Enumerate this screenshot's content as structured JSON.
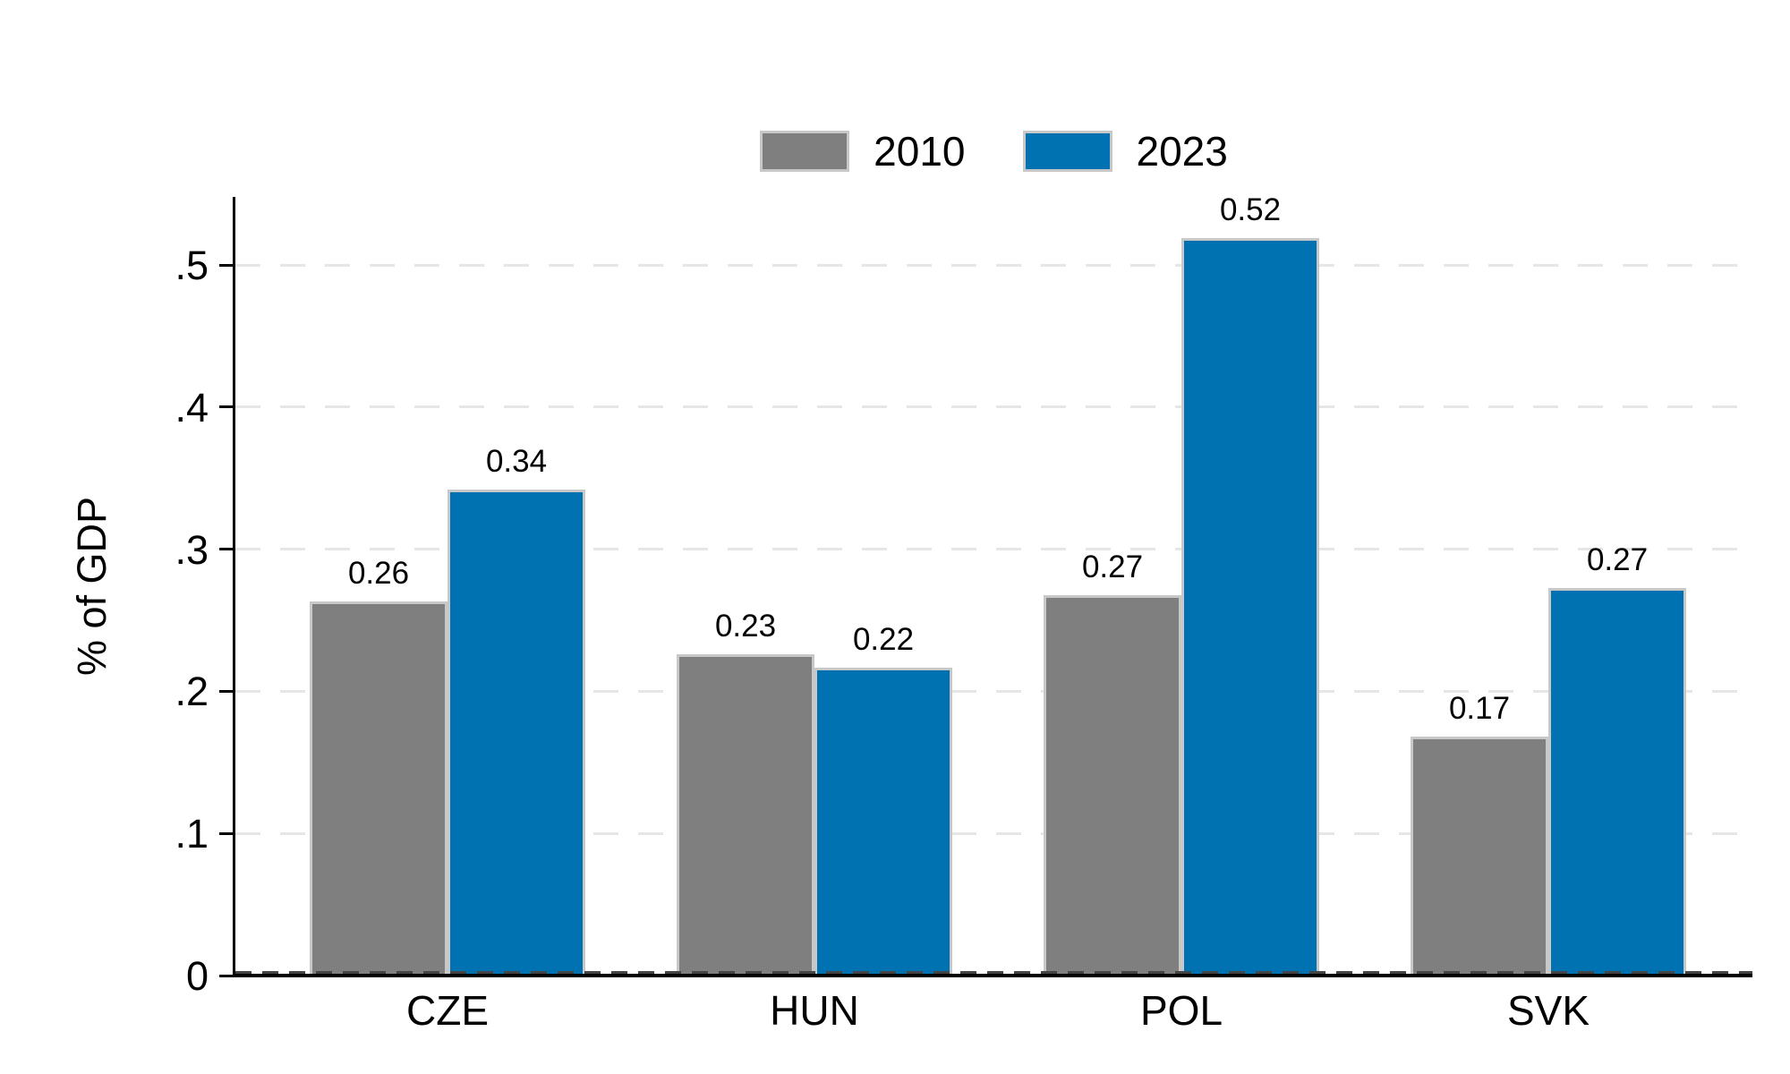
{
  "chart_data": {
    "type": "bar",
    "title": "",
    "xlabel": "",
    "ylabel": "% of GDP",
    "categories": [
      "CZE",
      "HUN",
      "POL",
      "SVK"
    ],
    "series": [
      {
        "name": "2010",
        "color": "#7f7f7f",
        "values": [
          0.26,
          0.23,
          0.27,
          0.17
        ],
        "values_precise": [
          0.263,
          0.226,
          0.268,
          0.168
        ],
        "bar_labels": [
          "0.26",
          "0.23",
          "0.27",
          "0.17"
        ]
      },
      {
        "name": "2023",
        "color": "#0072b2",
        "values": [
          0.34,
          0.22,
          0.52,
          0.27
        ],
        "values_precise": [
          0.342,
          0.217,
          0.519,
          0.273
        ],
        "bar_labels": [
          "0.34",
          "0.22",
          "0.52",
          "0.27"
        ]
      }
    ],
    "y_ticks": [
      {
        "value": 0.0,
        "label": "0"
      },
      {
        "value": 0.1,
        "label": ".1"
      },
      {
        "value": 0.2,
        "label": ".2"
      },
      {
        "value": 0.3,
        "label": ".3"
      },
      {
        "value": 0.4,
        "label": ".4"
      },
      {
        "value": 0.5,
        "label": ".5"
      }
    ],
    "ylim": [
      0,
      0.548
    ],
    "grid": "horizontal-dashed",
    "legend_position": "top-center"
  },
  "colors": {
    "series_2010": "#7f7f7f",
    "series_2023": "#0072b2",
    "bar_border": "#c8c8c8",
    "grid_line": "#e6e6e6",
    "zero_line": "#444444",
    "axis_line": "#000000",
    "background": "#ffffff",
    "text": "#000000"
  }
}
